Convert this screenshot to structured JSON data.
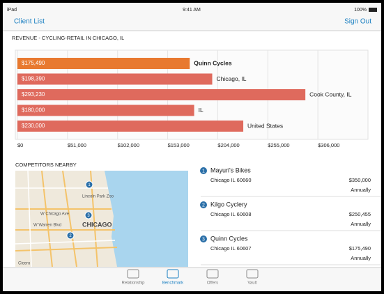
{
  "status_bar": {
    "device": "iPad",
    "time": "9:41 AM",
    "battery": "100%"
  },
  "nav": {
    "back": "Client List",
    "action": "Sign Out"
  },
  "chart_data": {
    "type": "bar",
    "orientation": "horizontal",
    "title": "REVENUE - CYCLING-RETAIL IN CHICAGO, IL",
    "categories": [
      "Quinn Cycles",
      "Chicago, IL",
      "Cook County, IL",
      "IL",
      "United States"
    ],
    "values": [
      175490,
      198390,
      293230,
      180000,
      230000
    ],
    "value_labels": [
      "$175,490",
      "$198,390",
      "$293,230",
      "$180,000",
      "$230,000"
    ],
    "colors": [
      "#e8792f",
      "#df6a5d",
      "#df6a5d",
      "#df6a5d",
      "#df6a5d"
    ],
    "xlim": [
      0,
      357000
    ],
    "xticks": [
      {
        "value": 0,
        "label": "$0"
      },
      {
        "value": 51000,
        "label": "$51,000"
      },
      {
        "value": 102000,
        "label": "$102,000"
      },
      {
        "value": 153000,
        "label": "$153,000"
      },
      {
        "value": 204000,
        "label": "$204,000"
      },
      {
        "value": 255000,
        "label": "$255,000"
      },
      {
        "value": 306000,
        "label": "$306,000"
      }
    ],
    "grid": true
  },
  "competitors": {
    "title": "COMPETITORS NEARBY",
    "items": [
      {
        "rank": 1,
        "name": "Mayuri's Bikes",
        "address": "Chicago IL 60660",
        "revenue": "$350,000",
        "period": "Annually"
      },
      {
        "rank": 2,
        "name": "Kilgo Cyclery",
        "address": "Chicago IL 60608",
        "revenue": "$250,455",
        "period": "Annually"
      },
      {
        "rank": 3,
        "name": "Quinn Cycles",
        "address": "Chicago IL 60607",
        "revenue": "$175,490",
        "period": "Annually"
      }
    ]
  },
  "map": {
    "labels": [
      "Lincoln Park Zoo",
      "W Chicago Ave",
      "W Warren Blvd",
      "CHICAGO",
      "Cicero"
    ]
  },
  "tabs": [
    "Relationship",
    "Benchmark",
    "Offers",
    "Vault"
  ]
}
